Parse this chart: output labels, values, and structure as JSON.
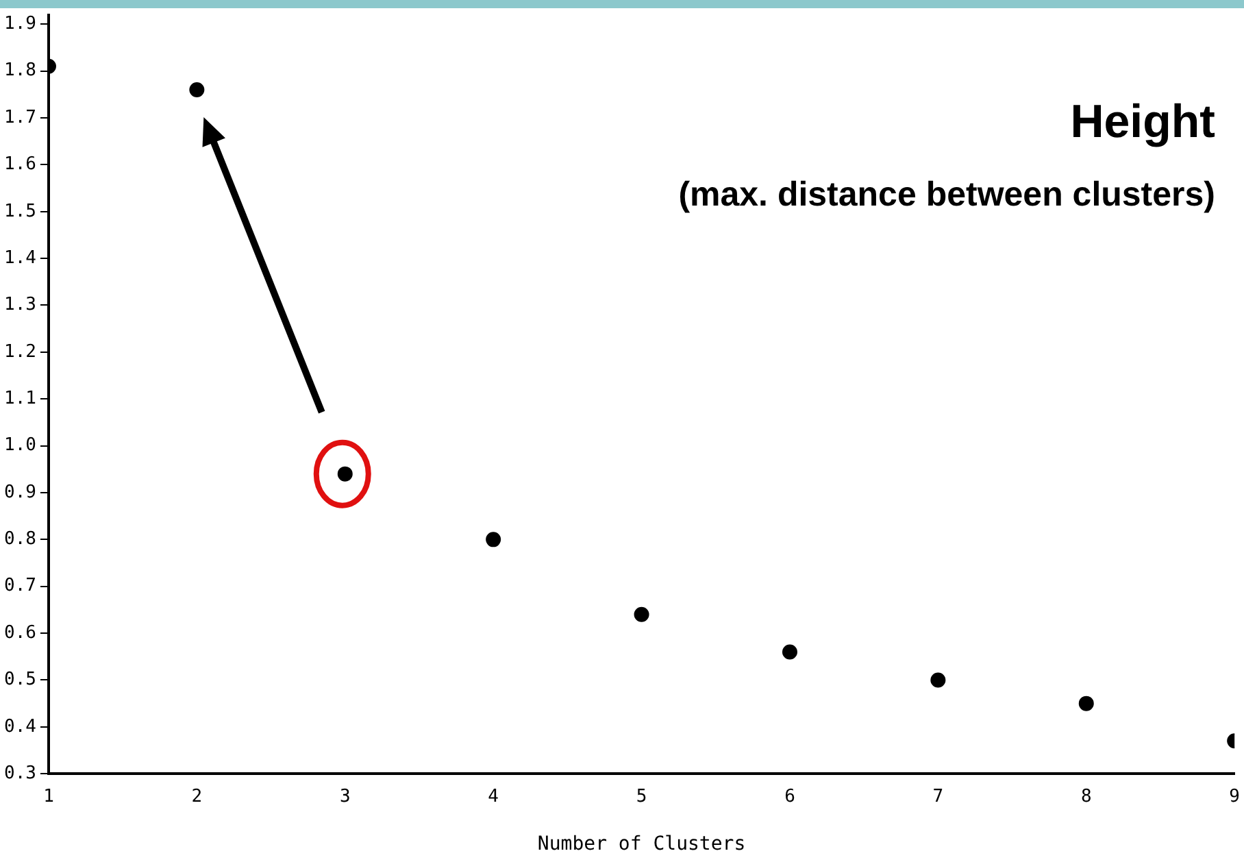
{
  "chart_data": {
    "type": "scatter",
    "xlabel": "Number of Clusters",
    "annotations": [
      "Height",
      "(max. distance between clusters)"
    ],
    "x": [
      1,
      2,
      3,
      4,
      5,
      6,
      7,
      8,
      9
    ],
    "series": [
      {
        "color": "#000000",
        "values": [
          1.81,
          1.76,
          0.94,
          0.8,
          0.64,
          0.56,
          0.5,
          0.45,
          0.37
        ]
      }
    ],
    "xlim": [
      1,
      9
    ],
    "xticks": [
      1,
      2,
      3,
      4,
      5,
      6,
      7,
      8,
      9
    ],
    "ylim": [
      0.3,
      1.92
    ],
    "yticks": [
      0.3,
      0.4,
      0.5,
      0.6,
      0.7,
      0.8,
      0.9,
      {
        "value": 1,
        "label": "1.0"
      },
      1.1,
      1.2,
      1.3,
      1.4,
      1.5,
      1.6,
      1.7,
      1.8,
      1.9
    ],
    "grid": false,
    "legend": false,
    "marker": "circle"
  }
}
